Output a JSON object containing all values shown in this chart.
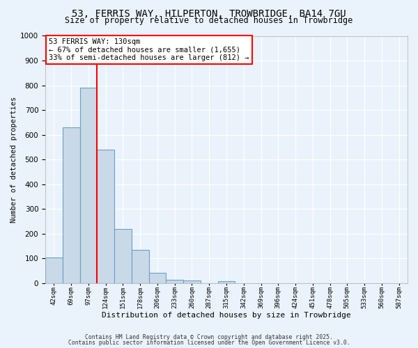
{
  "title": "53, FERRIS WAY, HILPERTON, TROWBRIDGE, BA14 7GU",
  "subtitle": "Size of property relative to detached houses in Trowbridge",
  "xlabel": "Distribution of detached houses by size in Trowbridge",
  "ylabel": "Number of detached properties",
  "footnote1": "Contains HM Land Registry data © Crown copyright and database right 2025.",
  "footnote2": "Contains public sector information licensed under the Open Government Licence v3.0.",
  "categories": [
    "42sqm",
    "69sqm",
    "97sqm",
    "124sqm",
    "151sqm",
    "178sqm",
    "206sqm",
    "233sqm",
    "260sqm",
    "287sqm",
    "315sqm",
    "342sqm",
    "369sqm",
    "396sqm",
    "424sqm",
    "451sqm",
    "478sqm",
    "505sqm",
    "533sqm",
    "560sqm",
    "587sqm"
  ],
  "values": [
    105,
    630,
    790,
    540,
    220,
    135,
    42,
    15,
    10,
    0,
    8,
    0,
    0,
    0,
    0,
    0,
    0,
    0,
    0,
    0,
    0
  ],
  "bar_color": "#c9d9e8",
  "bar_edge_color": "#6aa0c7",
  "vline_index": 3,
  "vline_color": "red",
  "annotation_box_text": "53 FERRIS WAY: 130sqm\n← 67% of detached houses are smaller (1,655)\n33% of semi-detached houses are larger (812) →",
  "annotation_fontsize": 7.5,
  "ylim": [
    0,
    1000
  ],
  "yticks": [
    0,
    100,
    200,
    300,
    400,
    500,
    600,
    700,
    800,
    900,
    1000
  ],
  "background_color": "#eaf3fb",
  "plot_bg_color": "#eaf3fb",
  "grid_color": "white",
  "title_fontsize": 10,
  "subtitle_fontsize": 8.5,
  "xlabel_fontsize": 8,
  "ylabel_fontsize": 7.5
}
